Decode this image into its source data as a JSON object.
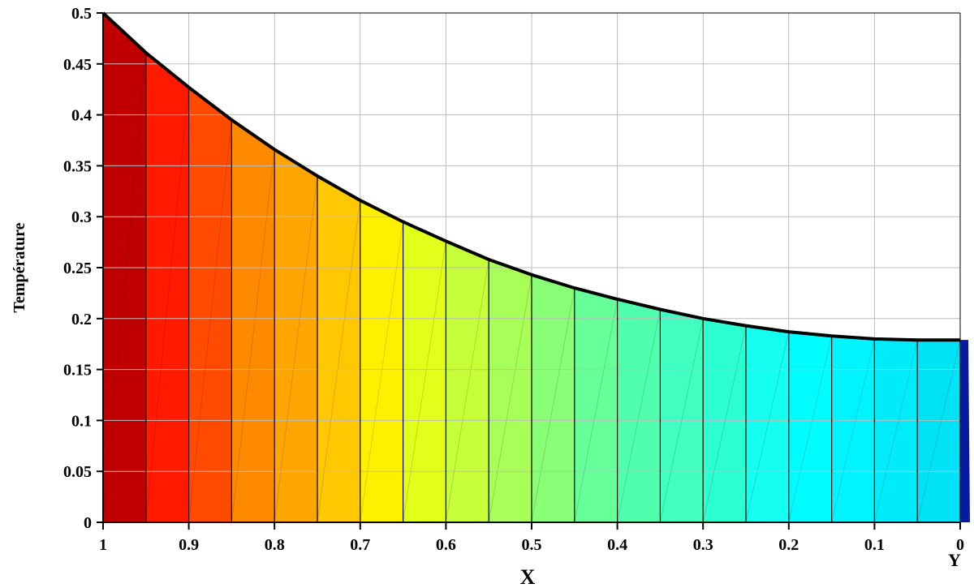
{
  "chart_data": {
    "type": "area",
    "xlabel": "X",
    "ylabel": "Température",
    "corner_label": "Y",
    "x_reversed": true,
    "xlim": [
      0,
      1
    ],
    "ylim": [
      0,
      0.5
    ],
    "grid": true,
    "x_ticks": [
      "1",
      "0.9",
      "0.8",
      "0.7",
      "0.6",
      "0.5",
      "0.4",
      "0.3",
      "0.2",
      "0.1",
      "0"
    ],
    "y_ticks": [
      "0",
      "0.05",
      "0.1",
      "0.15",
      "0.2",
      "0.25",
      "0.3",
      "0.35",
      "0.4",
      "0.45",
      "0.5"
    ],
    "x": [
      1.0,
      0.95,
      0.9,
      0.85,
      0.8,
      0.75,
      0.7,
      0.65,
      0.6,
      0.55,
      0.5,
      0.45,
      0.4,
      0.35,
      0.3,
      0.25,
      0.2,
      0.15,
      0.1,
      0.05,
      0.0
    ],
    "values": [
      0.5,
      0.461,
      0.427,
      0.395,
      0.366,
      0.34,
      0.316,
      0.295,
      0.276,
      0.258,
      0.243,
      0.23,
      0.219,
      0.209,
      0.2,
      0.193,
      0.187,
      0.183,
      0.18,
      0.179,
      0.179
    ],
    "band_colors": [
      "#c00000",
      "#ff1a00",
      "#ff4a00",
      "#ff8a00",
      "#ffa500",
      "#ffc800",
      "#fff000",
      "#e2ff1c",
      "#c6ff3a",
      "#a8ff57",
      "#88ff76",
      "#66ff98",
      "#50ffad",
      "#40ffc0",
      "#2cffd2",
      "#14fff0",
      "#00fcff",
      "#00f4ff",
      "#00ecfb",
      "#00e2f6"
    ],
    "edge_color": "#0a1aa0"
  }
}
